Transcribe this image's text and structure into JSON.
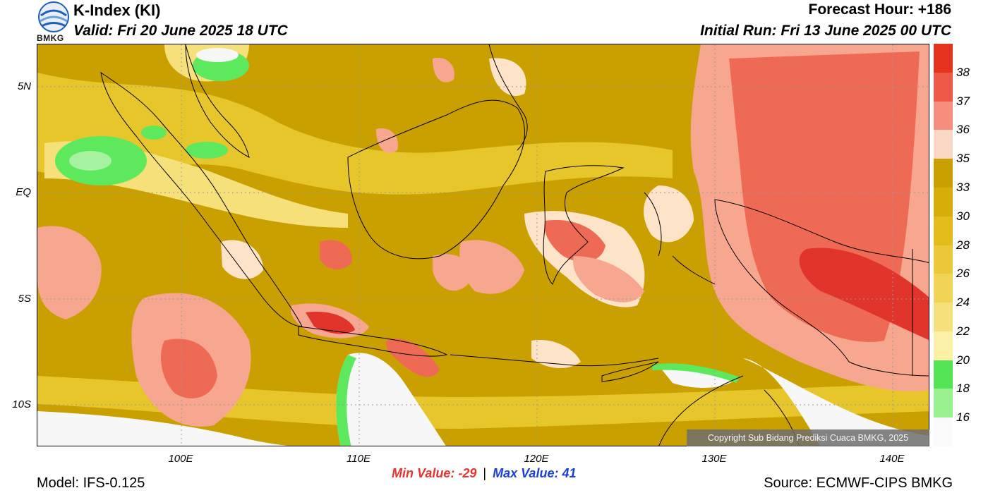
{
  "header": {
    "title": "K-Index (KI)",
    "valid": "Valid: Fri 20 June 2025 18 UTC",
    "forecast_hour": "Forecast Hour: +186",
    "initial_run": "Initial Run: Fri 13 June 2025 00 UTC"
  },
  "logo": {
    "text": "BMKG",
    "icon": "bmkg-logo-icon"
  },
  "map": {
    "lat_labels": [
      "5N",
      "EQ",
      "5S",
      "10S"
    ],
    "lon_labels": [
      "100E",
      "110E",
      "120E",
      "130E",
      "140E"
    ],
    "copyright": "Copyright Sub Bidang Prediksi Cuaca BMKG, 2025",
    "colors": {
      "ocean_base": "#c9a000",
      "land_light": "#e6c62a",
      "pale_yellow": "#f5e07a",
      "cream": "#fde3c8",
      "pink": "#f7a790",
      "salmon": "#ef6a55",
      "red": "#e1342a",
      "green": "#5ee85e",
      "light_green": "#a6f2a0",
      "low": "#f7f7f7"
    }
  },
  "colorbar": {
    "labels": [
      "38",
      "37",
      "36",
      "35",
      "33",
      "30",
      "28",
      "26",
      "24",
      "22",
      "20",
      "18",
      "16"
    ],
    "colors": [
      "#e63320",
      "#ee5a48",
      "#f58e7c",
      "#fbd8c6",
      "#c9a000",
      "#d6ad09",
      "#e3bb1a",
      "#ecc838",
      "#f1d356",
      "#f6e07c",
      "#fcefa6",
      "#55e455",
      "#99f08f",
      "#fafafa"
    ]
  },
  "stats": {
    "min": "Min Value: -29",
    "separator": "|",
    "max": "Max Value:  41"
  },
  "footer": {
    "model": "Model: IFS-0.125",
    "source": "Source: ECMWF-CIPS BMKG"
  }
}
